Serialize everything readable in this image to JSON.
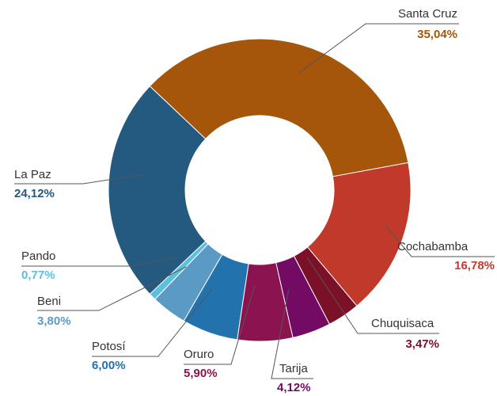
{
  "chart_data": {
    "type": "pie",
    "categories": [
      "Santa Cruz",
      "Cochabamba",
      "Chuquisaca",
      "Tarija",
      "Oruro",
      "Potosí",
      "Beni",
      "Pando",
      "La Paz"
    ],
    "values": [
      35.04,
      16.78,
      3.47,
      4.12,
      5.9,
      6.0,
      3.8,
      0.77,
      24.12
    ],
    "value_labels": [
      "35,04%",
      "16,78%",
      "3,47%",
      "4,12%",
      "5,90%",
      "6,00%",
      "3,80%",
      "0,77%",
      "24,12%"
    ],
    "colors": [
      "#a5560a",
      "#c0392b",
      "#7b1128",
      "#730a64",
      "#8b1450",
      "#2272ad",
      "#5b9ac4",
      "#5bc0de",
      "#245a80"
    ]
  }
}
